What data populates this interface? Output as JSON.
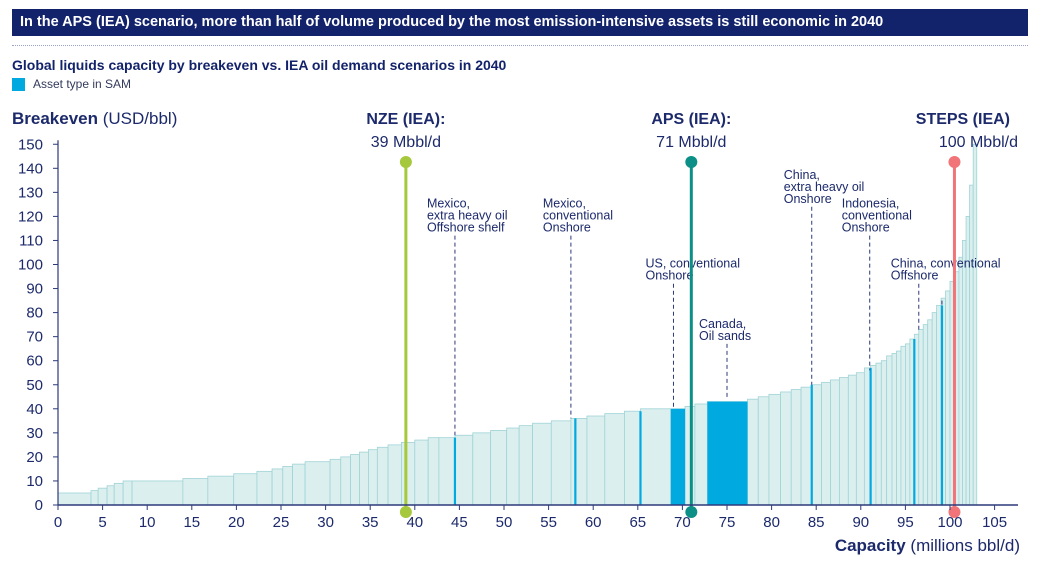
{
  "header": {
    "banner": "In the APS (IEA) scenario, more than half of volume produced by the most emission-intensive assets is still economic in 2040",
    "subtitle": "Global liquids capacity by breakeven vs. IEA oil demand scenarios in 2040",
    "legend_label": "Asset type in SAM"
  },
  "colors": {
    "banner_bg": "#13236b",
    "text": "#1c2a6b",
    "bar_fill": "#dcefef",
    "bar_stroke": "#9fd3d6",
    "highlight": "#00a9e0",
    "nze": "#a5c83c",
    "aps": "#0b8f87",
    "steps": "#f07478",
    "axis": "#2d3a7a"
  },
  "chart_data": {
    "type": "bar",
    "title": "Global liquids capacity by breakeven vs. IEA oil demand scenarios in 2040",
    "ylabel_bold": "Breakeven",
    "ylabel_unit": "(USD/bbl)",
    "xlabel_bold": "Capacity",
    "xlabel_unit": "(millions bbl/d)",
    "xlim": [
      0,
      107
    ],
    "ylim": [
      0,
      150
    ],
    "xticks": [
      0,
      5,
      10,
      15,
      20,
      25,
      30,
      35,
      40,
      45,
      50,
      55,
      60,
      65,
      70,
      75,
      80,
      85,
      90,
      95,
      100,
      105
    ],
    "yticks": [
      0,
      10,
      20,
      30,
      40,
      50,
      60,
      70,
      80,
      90,
      100,
      110,
      120,
      130,
      140,
      150
    ],
    "bars": [
      [
        0,
        3.7,
        5
      ],
      [
        3.7,
        4.5,
        6
      ],
      [
        4.5,
        5.5,
        7
      ],
      [
        5.5,
        6.3,
        8
      ],
      [
        6.3,
        7.3,
        9
      ],
      [
        7.3,
        8.3,
        10
      ],
      [
        8.3,
        14.0,
        10
      ],
      [
        14.0,
        16.8,
        11
      ],
      [
        16.8,
        19.7,
        12
      ],
      [
        19.7,
        22.3,
        13
      ],
      [
        22.3,
        24.0,
        14
      ],
      [
        24.0,
        25.2,
        15
      ],
      [
        25.2,
        26.3,
        16
      ],
      [
        26.3,
        27.7,
        17
      ],
      [
        27.7,
        30.5,
        18
      ],
      [
        30.5,
        31.7,
        19
      ],
      [
        31.7,
        32.8,
        20
      ],
      [
        32.8,
        33.8,
        21
      ],
      [
        33.8,
        34.8,
        22
      ],
      [
        34.8,
        35.8,
        23
      ],
      [
        35.8,
        37.0,
        24
      ],
      [
        37.0,
        38.5,
        25
      ],
      [
        38.5,
        40.0,
        26
      ],
      [
        40.0,
        41.5,
        27
      ],
      [
        41.5,
        42.7,
        28
      ],
      [
        42.7,
        44.5,
        28
      ],
      [
        44.5,
        46.5,
        29
      ],
      [
        46.5,
        48.5,
        30
      ],
      [
        48.5,
        50.3,
        31
      ],
      [
        50.3,
        51.7,
        32
      ],
      [
        51.7,
        53.2,
        33
      ],
      [
        53.2,
        55.3,
        34
      ],
      [
        55.3,
        57.5,
        35
      ],
      [
        57.5,
        59.3,
        36
      ],
      [
        59.3,
        61.3,
        37
      ],
      [
        61.3,
        63.5,
        38
      ],
      [
        63.5,
        65.3,
        39
      ],
      [
        65.3,
        68.7,
        40
      ],
      [
        68.7,
        70.3,
        40
      ],
      [
        70.3,
        71.4,
        41
      ],
      [
        71.4,
        72.8,
        42
      ],
      [
        72.8,
        77.3,
        43
      ],
      [
        77.3,
        78.5,
        44
      ],
      [
        78.5,
        79.7,
        45
      ],
      [
        79.7,
        81.0,
        46
      ],
      [
        81.0,
        82.2,
        47
      ],
      [
        82.2,
        83.3,
        48
      ],
      [
        83.3,
        84.5,
        49
      ],
      [
        84.5,
        85.6,
        50
      ],
      [
        85.6,
        86.6,
        51
      ],
      [
        86.6,
        87.6,
        52
      ],
      [
        87.6,
        88.6,
        53
      ],
      [
        88.6,
        89.5,
        54
      ],
      [
        89.5,
        90.4,
        55
      ],
      [
        90.4,
        91.1,
        57
      ],
      [
        91.1,
        91.7,
        58
      ],
      [
        91.7,
        92.3,
        59
      ],
      [
        92.3,
        92.9,
        60
      ],
      [
        92.9,
        93.5,
        62
      ],
      [
        93.5,
        94.0,
        63
      ],
      [
        94.0,
        94.5,
        64
      ],
      [
        94.5,
        95.0,
        66
      ],
      [
        95.0,
        95.5,
        67
      ],
      [
        95.5,
        96.0,
        69
      ],
      [
        96.0,
        96.5,
        71
      ],
      [
        96.5,
        97.0,
        73
      ],
      [
        97.0,
        97.5,
        75
      ],
      [
        97.5,
        98.0,
        77
      ],
      [
        98.0,
        98.5,
        80
      ],
      [
        98.5,
        99.0,
        83
      ],
      [
        99.0,
        99.5,
        86
      ],
      [
        99.5,
        100.0,
        89
      ],
      [
        100.0,
        100.5,
        93
      ],
      [
        100.5,
        101.0,
        97
      ],
      [
        101.0,
        101.4,
        103
      ],
      [
        101.4,
        101.8,
        110
      ],
      [
        101.8,
        102.2,
        120
      ],
      [
        102.2,
        102.6,
        133
      ],
      [
        102.6,
        103.0,
        150
      ]
    ],
    "highlight_bars": [
      [
        68.7,
        70.3,
        40
      ],
      [
        72.8,
        77.3,
        43
      ]
    ],
    "highlight_lines": [
      [
        44.5,
        28
      ],
      [
        58.0,
        36
      ],
      [
        65.3,
        39
      ],
      [
        84.5,
        50
      ],
      [
        91.1,
        57
      ],
      [
        96.0,
        69
      ],
      [
        99.1,
        83
      ]
    ],
    "scenarios": [
      {
        "name": "NZE (IEA):",
        "value_label": "39 Mbbl/d",
        "x": 39,
        "color": "#a5c83c"
      },
      {
        "name": "APS (IEA):",
        "value_label": "71 Mbbl/d",
        "x": 71,
        "color": "#0b8f87"
      },
      {
        "name": "STEPS (IEA)",
        "value_label": "100 Mbbl/d",
        "x": 100.5,
        "color": "#f07478"
      }
    ],
    "annotations": [
      {
        "lines": [
          "Mexico,",
          "extra heavy oil",
          "Offshore shelf"
        ],
        "x": 44.5,
        "y_top": 112,
        "y_bot": 29
      },
      {
        "lines": [
          "Mexico,",
          "conventional",
          "Onshore"
        ],
        "x": 57.5,
        "y_top": 112,
        "y_bot": 36
      },
      {
        "lines": [
          "US, conventional",
          "Onshore"
        ],
        "x": 69.0,
        "y_top": 92,
        "y_bot": 40
      },
      {
        "lines": [
          "Canada,",
          "Oil sands"
        ],
        "x": 75.0,
        "y_top": 67,
        "y_bot": 44
      },
      {
        "lines": [
          "China,",
          "extra heavy oil",
          "Onshore"
        ],
        "x": 84.5,
        "y_top": 124,
        "y_bot": 50
      },
      {
        "lines": [
          "Indonesia,",
          "conventional",
          "Onshore"
        ],
        "x": 91.0,
        "y_top": 112,
        "y_bot": 56
      },
      {
        "lines": [
          "China, conventional",
          "Offshore"
        ],
        "x": 96.5,
        "y_top": 92,
        "y_bot": 72
      },
      {
        "lines": [],
        "x": 99.1,
        "y_top": 85,
        "y_bot": 83
      }
    ]
  }
}
